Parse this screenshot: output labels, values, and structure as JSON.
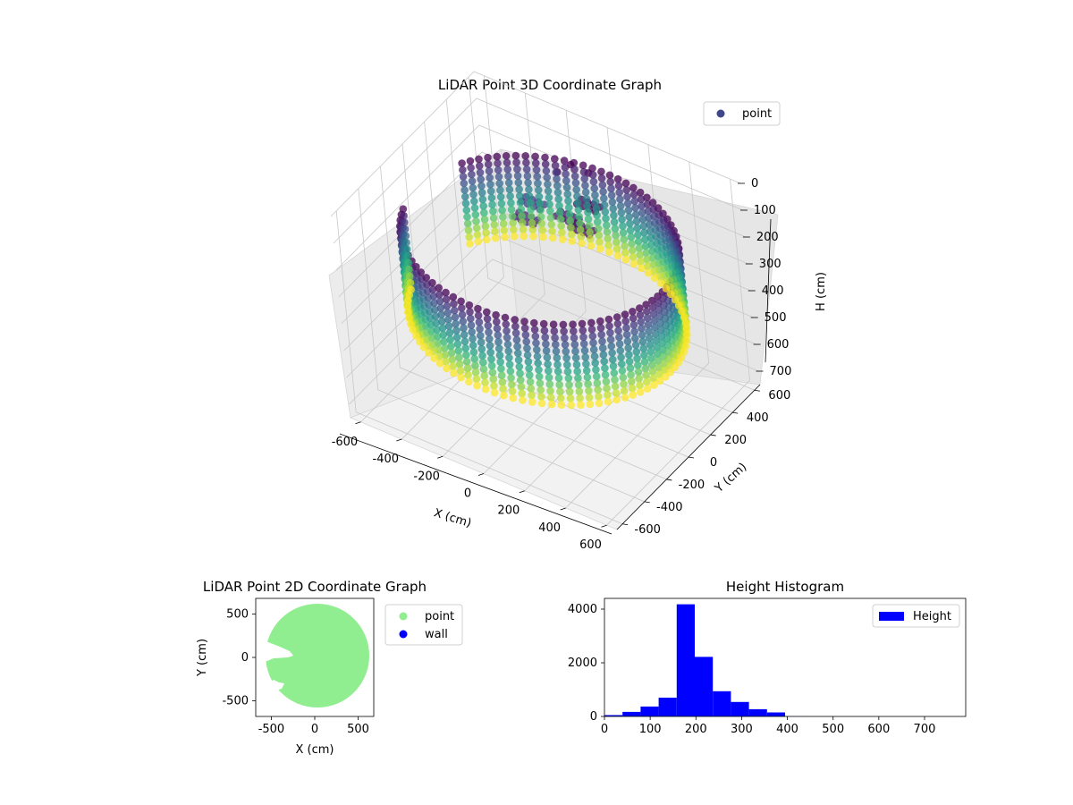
{
  "chart_data": [
    {
      "type": "scatter",
      "projection": "3d",
      "title": "LiDAR Point 3D Coordinate Graph",
      "xlabel": "X (cm)",
      "ylabel": "Y (cm)",
      "zlabel": "H (cm)",
      "xticks": [
        -600,
        -400,
        -200,
        0,
        200,
        400,
        600
      ],
      "yticks": [
        -600,
        -400,
        -200,
        0,
        200,
        400,
        600
      ],
      "zticks": [
        0,
        100,
        200,
        300,
        400,
        500,
        600,
        700
      ],
      "xlim": [
        -650,
        650
      ],
      "ylim": [
        -650,
        650
      ],
      "zlim": [
        0,
        750
      ],
      "z_axis_inverted": true,
      "colormap": "viridis",
      "color_by": "H",
      "legend": {
        "entries": [
          "point"
        ],
        "placement": "top-right"
      },
      "series": [
        {
          "name": "point",
          "color": "#3f4788",
          "description_points": {
            "wall_radius_cm": 600,
            "wall_height_range_cm": [
              150,
              450
            ],
            "wall_open_sector_deg": [
              155,
              195
            ],
            "floor_cluster": [
              [
                -150,
                150,
                180
              ],
              [
                0,
                250,
                170
              ],
              [
                -200,
                300,
                200
              ],
              [
                50,
                350,
                150
              ],
              [
                100,
                200,
                160
              ]
            ],
            "outliers": [
              [
                -20,
                350,
                20
              ],
              [
                60,
                360,
                30
              ],
              [
                -60,
                300,
                40
              ]
            ]
          }
        }
      ]
    },
    {
      "type": "scatter",
      "title": "LiDAR Point 2D Coordinate Graph",
      "xlabel": "X (cm)",
      "ylabel": "Y (cm)",
      "xticks": [
        -500,
        0,
        500
      ],
      "yticks": [
        -500,
        0,
        500
      ],
      "xlim": [
        -680,
        680
      ],
      "ylim": [
        -680,
        680
      ],
      "grid": false,
      "legend": {
        "entries": [
          "point",
          "wall"
        ],
        "placement": "outside-right"
      },
      "series": [
        {
          "name": "point",
          "color": "#90ee90",
          "shape": "disk",
          "radius_cm": 620
        },
        {
          "name": "wall",
          "color": "#0000ff"
        }
      ]
    },
    {
      "type": "histogram",
      "title": "Height Histogram",
      "xlabel": "",
      "ylabel": "",
      "xticks": [
        0,
        100,
        200,
        300,
        400,
        500,
        600,
        700
      ],
      "yticks": [
        0,
        2000,
        4000
      ],
      "xlim": [
        0,
        790
      ],
      "ylim": [
        0,
        4400
      ],
      "color": "#0000ff",
      "legend": {
        "entries": [
          "Height"
        ],
        "placement": "top-right"
      },
      "series": [
        {
          "name": "Height",
          "bin_edges": [
            0,
            39.5,
            79,
            118.5,
            158,
            197.5,
            237,
            276.5,
            316,
            355.5,
            395,
            434.5,
            474,
            513.5,
            553,
            592.5,
            632,
            671.5,
            711,
            750.5,
            790
          ],
          "counts": [
            50,
            170,
            370,
            700,
            4180,
            2220,
            940,
            540,
            270,
            150,
            5,
            2,
            2,
            1,
            1,
            1,
            1,
            1,
            1,
            0
          ]
        }
      ]
    }
  ]
}
